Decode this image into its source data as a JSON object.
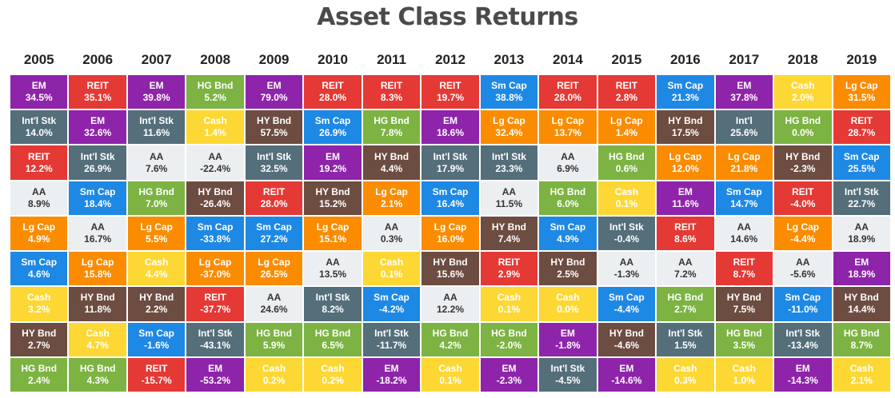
{
  "title": "Asset Class Returns",
  "colors": {
    "EM": "#8e24aa",
    "REIT": "#e53935",
    "HG Bnd": "#7cb342",
    "Int'l Stk": "#546e7a",
    "Sm Cap": "#1e88e5",
    "Lg Cap": "#fb8c00",
    "AA": "#eceff1",
    "HY Bnd": "#6d4c41",
    "Cash": "#fdd835"
  },
  "text_colors": {
    "EM": "#ffffff",
    "REIT": "#ffffff",
    "HG Bnd": "#ffffff",
    "Int'l Stk": "#ffffff",
    "Sm Cap": "#ffffff",
    "Lg Cap": "#ffffff",
    "AA": "#333333",
    "HY Bnd": "#ffffff",
    "Cash": "#ffffff"
  },
  "chart_data": {
    "type": "table",
    "years": [
      "2005",
      "2006",
      "2007",
      "2008",
      "2009",
      "2010",
      "2011",
      "2012",
      "2013",
      "2014",
      "2015",
      "2016",
      "2017",
      "2018",
      "2019"
    ],
    "columns": [
      [
        [
          "EM",
          "34.5%"
        ],
        [
          "Int'l Stk",
          "14.0%"
        ],
        [
          "REIT",
          "12.2%"
        ],
        [
          "AA",
          "8.9%"
        ],
        [
          "Lg Cap",
          "4.9%"
        ],
        [
          "Sm Cap",
          "4.6%"
        ],
        [
          "Cash",
          "3.2%"
        ],
        [
          "HY Bnd",
          "2.7%"
        ],
        [
          "HG Bnd",
          "2.4%"
        ]
      ],
      [
        [
          "REIT",
          "35.1%"
        ],
        [
          "EM",
          "32.6%"
        ],
        [
          "Int'l Stk",
          "26.9%"
        ],
        [
          "Sm Cap",
          "18.4%"
        ],
        [
          "AA",
          "16.7%"
        ],
        [
          "Lg Cap",
          "15.8%"
        ],
        [
          "HY Bnd",
          "11.8%"
        ],
        [
          "Cash",
          "4.7%"
        ],
        [
          "HG Bnd",
          "4.3%"
        ]
      ],
      [
        [
          "EM",
          "39.8%"
        ],
        [
          "Int'l Stk",
          "11.6%"
        ],
        [
          "AA",
          "7.6%"
        ],
        [
          "HG Bnd",
          "7.0%"
        ],
        [
          "Lg Cap",
          "5.5%"
        ],
        [
          "Cash",
          "4.4%"
        ],
        [
          "HY Bnd",
          "2.2%"
        ],
        [
          "Sm Cap",
          "-1.6%"
        ],
        [
          "REIT",
          "-15.7%"
        ]
      ],
      [
        [
          "HG Bnd",
          "5.2%"
        ],
        [
          "Cash",
          "1.4%"
        ],
        [
          "AA",
          "-22.4%"
        ],
        [
          "HY Bnd",
          "-26.4%"
        ],
        [
          "Sm Cap",
          "-33.8%"
        ],
        [
          "Lg Cap",
          "-37.0%"
        ],
        [
          "REIT",
          "-37.7%"
        ],
        [
          "Int'l Stk",
          "-43.1%"
        ],
        [
          "EM",
          "-53.2%"
        ]
      ],
      [
        [
          "EM",
          "79.0%"
        ],
        [
          "HY Bnd",
          "57.5%"
        ],
        [
          "Int'l Stk",
          "32.5%"
        ],
        [
          "REIT",
          "28.0%"
        ],
        [
          "Sm Cap",
          "27.2%"
        ],
        [
          "Lg Cap",
          "26.5%"
        ],
        [
          "AA",
          "24.6%"
        ],
        [
          "HG Bnd",
          "5.9%"
        ],
        [
          "Cash",
          "0.2%"
        ]
      ],
      [
        [
          "REIT",
          "28.0%"
        ],
        [
          "Sm Cap",
          "26.9%"
        ],
        [
          "EM",
          "19.2%"
        ],
        [
          "HY Bnd",
          "15.2%"
        ],
        [
          "Lg Cap",
          "15.1%"
        ],
        [
          "AA",
          "13.5%"
        ],
        [
          "Int'l Stk",
          "8.2%"
        ],
        [
          "HG Bnd",
          "6.5%"
        ],
        [
          "Cash",
          "0.2%"
        ]
      ],
      [
        [
          "REIT",
          "8.3%"
        ],
        [
          "HG Bnd",
          "7.8%"
        ],
        [
          "HY Bnd",
          "4.4%"
        ],
        [
          "Lg Cap",
          "2.1%"
        ],
        [
          "AA",
          "0.3%"
        ],
        [
          "Cash",
          "0.1%"
        ],
        [
          "Sm Cap",
          "-4.2%"
        ],
        [
          "Int'l Stk",
          "-11.7%"
        ],
        [
          "EM",
          "-18.2%"
        ]
      ],
      [
        [
          "REIT",
          "19.7%"
        ],
        [
          "EM",
          "18.6%"
        ],
        [
          "Int'l Stk",
          "17.9%"
        ],
        [
          "Sm Cap",
          "16.4%"
        ],
        [
          "Lg Cap",
          "16.0%"
        ],
        [
          "HY Bnd",
          "15.6%"
        ],
        [
          "AA",
          "12.2%"
        ],
        [
          "HG Bnd",
          "4.2%"
        ],
        [
          "Cash",
          "0.1%"
        ]
      ],
      [
        [
          "Sm Cap",
          "38.8%"
        ],
        [
          "Lg Cap",
          "32.4%"
        ],
        [
          "Int'l Stk",
          "23.3%"
        ],
        [
          "AA",
          "11.5%"
        ],
        [
          "HY Bnd",
          "7.4%"
        ],
        [
          "REIT",
          "2.9%"
        ],
        [
          "Cash",
          "0.1%"
        ],
        [
          "HG Bnd",
          "-2.0%"
        ],
        [
          "EM",
          "-2.3%"
        ]
      ],
      [
        [
          "REIT",
          "28.0%"
        ],
        [
          "Lg Cap",
          "13.7%"
        ],
        [
          "AA",
          "6.9%"
        ],
        [
          "HG Bnd",
          "6.0%"
        ],
        [
          "Sm Cap",
          "4.9%"
        ],
        [
          "HY Bnd",
          "2.5%"
        ],
        [
          "Cash",
          "0.0%"
        ],
        [
          "EM",
          "-1.8%"
        ],
        [
          "Int'l Stk",
          "-4.5%"
        ]
      ],
      [
        [
          "REIT",
          "2.8%"
        ],
        [
          "Lg Cap",
          "1.4%"
        ],
        [
          "HG Bnd",
          "0.6%"
        ],
        [
          "Cash",
          "0.1%"
        ],
        [
          "Int'l Stk",
          "-0.4%"
        ],
        [
          "AA",
          "-1.3%"
        ],
        [
          "Sm Cap",
          "-4.4%"
        ],
        [
          "HY Bnd",
          "-4.6%"
        ],
        [
          "EM",
          "-14.6%"
        ]
      ],
      [
        [
          "Sm Cap",
          "21.3%"
        ],
        [
          "HY Bnd",
          "17.5%"
        ],
        [
          "Lg Cap",
          "12.0%"
        ],
        [
          "EM",
          "11.6%"
        ],
        [
          "REIT",
          "8.6%"
        ],
        [
          "AA",
          "7.2%"
        ],
        [
          "HG Bnd",
          "2.7%"
        ],
        [
          "Int'l Stk",
          "1.5%"
        ],
        [
          "Cash",
          "0.3%"
        ]
      ],
      [
        [
          "EM",
          "37.8%"
        ],
        [
          "Int'l",
          "25.6%"
        ],
        [
          "Lg Cap",
          "21.8%"
        ],
        [
          "Sm Cap",
          "14.7%"
        ],
        [
          "AA",
          "14.6%"
        ],
        [
          "REIT",
          "8.7%"
        ],
        [
          "HY Bnd",
          "7.5%"
        ],
        [
          "HG Bnd",
          "3.5%"
        ],
        [
          "Cash",
          "1.0%"
        ]
      ],
      [
        [
          "Cash",
          "2.0%"
        ],
        [
          "HG Bnd",
          "0.0%"
        ],
        [
          "HY Bnd",
          "-2.3%"
        ],
        [
          "REIT",
          "-4.0%"
        ],
        [
          "Lg Cap",
          "-4.4%"
        ],
        [
          "AA",
          "-5.6%"
        ],
        [
          "Sm Cap",
          "-11.0%"
        ],
        [
          "Int'l Stk",
          "-13.4%"
        ],
        [
          "EM",
          "-14.3%"
        ]
      ],
      [
        [
          "Lg Cap",
          "31.5%"
        ],
        [
          "REIT",
          "28.7%"
        ],
        [
          "Sm Cap",
          "25.5%"
        ],
        [
          "Int'l Stk",
          "22.7%"
        ],
        [
          "AA",
          "18.9%"
        ],
        [
          "EM",
          "18.9%"
        ],
        [
          "HY Bnd",
          "14.4%"
        ],
        [
          "HG Bnd",
          "8.7%"
        ],
        [
          "Cash",
          "2.1%"
        ]
      ]
    ]
  }
}
